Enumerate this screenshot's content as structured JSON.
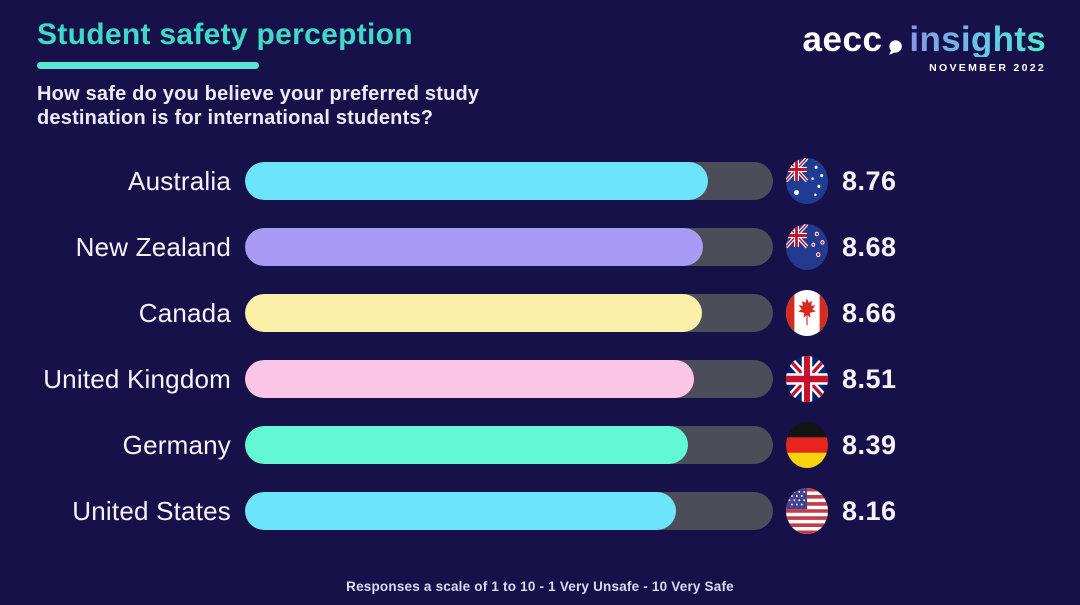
{
  "colors": {
    "background": "#171149",
    "accent_title": "#40d9c6",
    "accent_underline": "#59e7d5",
    "text": "#f6f3fd"
  },
  "header": {
    "title": "Student safety perception",
    "subtitle_line1": "How safe do you believe your preferred study",
    "subtitle_line2": "destination is for international students?"
  },
  "logo": {
    "brand": "aecc",
    "product": "insights",
    "date": "NOVEMBER 2022"
  },
  "chart_data": {
    "type": "bar",
    "orientation": "horizontal",
    "scale_min": 1,
    "scale_max": 10,
    "categories": [
      "Australia",
      "New Zealand",
      "Canada",
      "United Kingdom",
      "Germany",
      "United States"
    ],
    "values": [
      8.76,
      8.68,
      8.66,
      8.51,
      8.39,
      8.16
    ],
    "value_labels": [
      "8.76",
      "8.68",
      "8.66",
      "8.51",
      "8.39",
      "8.16"
    ],
    "bar_colors": [
      "#6ce4fa",
      "#a89af5",
      "#faf0a8",
      "#fbc6e5",
      "#63f8d5",
      "#6ce4fa"
    ],
    "track_color": "#4b4e58",
    "flags": [
      "australia-flag",
      "new-zealand-flag",
      "canada-flag",
      "united-kingdom-flag",
      "germany-flag",
      "united-states-flag"
    ],
    "footnote": "Responses a scale of 1 to 10 - 1 Very Unsafe - 10 Very Safe"
  }
}
